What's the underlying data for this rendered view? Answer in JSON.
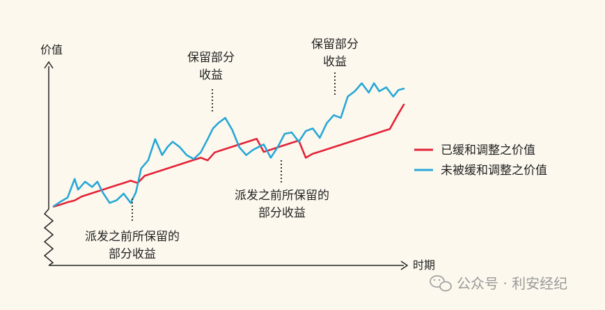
{
  "chart_data": {
    "type": "line",
    "axes": {
      "ylabel": "价值",
      "xlabel": "时期",
      "y_axis_break": true,
      "ticks": "none"
    },
    "legend": {
      "position": "right",
      "entries": [
        {
          "label": "已缓和调整之价值",
          "color": "#e32236"
        },
        {
          "label": "未被缓和调整之价值",
          "color": "#27a7d6"
        }
      ]
    },
    "annotations": [
      {
        "lines": [
          "派发之前所保留的",
          "部分收益"
        ]
      },
      {
        "lines": [
          "保留部分",
          "收益"
        ]
      },
      {
        "lines": [
          "派发之前所保留的",
          "部分收益"
        ]
      },
      {
        "lines": [
          "保留部分",
          "收益"
        ]
      }
    ],
    "series": [
      {
        "name": "已缓和调整之价值",
        "color": "#e32236",
        "x": [
          0,
          2,
          4,
          6,
          8,
          10,
          12,
          14,
          16,
          18,
          20,
          22,
          24,
          26,
          28,
          30,
          32,
          34,
          36,
          38,
          40,
          42,
          44,
          46,
          48,
          50,
          52,
          54,
          56,
          58,
          60,
          62,
          64,
          66,
          68,
          70,
          72,
          74,
          76,
          78,
          80,
          82,
          84,
          86,
          88,
          90,
          92,
          94,
          96,
          98,
          100
        ],
        "y": [
          11.2,
          12.8,
          14.5,
          15.9,
          18.8,
          20.5,
          22.2,
          23.9,
          25.6,
          27.3,
          29.0,
          30.7,
          29.0,
          34.4,
          36.1,
          37.8,
          39.5,
          41.2,
          42.9,
          44.6,
          46.3,
          48.0,
          46.0,
          52.0,
          53.7,
          55.4,
          57.1,
          58.8,
          60.5,
          62.2,
          52.4,
          54.0,
          55.8,
          57.5,
          59.2,
          60.9,
          48.0,
          51.0,
          52.6,
          54.3,
          56.0,
          57.7,
          59.4,
          61.1,
          62.8,
          64.5,
          66.2,
          67.9,
          69.6,
          79.0,
          88.0
        ]
      },
      {
        "name": "未被缓和调整之价值",
        "color": "#27a7d6",
        "x": [
          0,
          2,
          4,
          6,
          7,
          9,
          11,
          12.5,
          14,
          16,
          18,
          20,
          22,
          23.5,
          25,
          27,
          29,
          31,
          32.5,
          34,
          36,
          38,
          40,
          42,
          44,
          45.5,
          47,
          49,
          51,
          53,
          55,
          57,
          58.5,
          60,
          62,
          64,
          66,
          68,
          70,
          72,
          74,
          76,
          78,
          80,
          82,
          84,
          86,
          88,
          90,
          91.5,
          93,
          95,
          97,
          98.5,
          100
        ],
        "y": [
          11.5,
          15.0,
          18.0,
          32.0,
          24.0,
          30.0,
          26.0,
          30.0,
          22.0,
          14.0,
          16.0,
          21.0,
          14.0,
          22.0,
          40.0,
          46.0,
          62.0,
          50.0,
          56.0,
          60.0,
          56.0,
          50.0,
          47.0,
          52.0,
          62.0,
          70.0,
          74.0,
          78.0,
          69.0,
          56.0,
          50.0,
          54.0,
          56.0,
          58.0,
          48.0,
          56.0,
          66.0,
          67.0,
          60.0,
          68.0,
          70.0,
          63.0,
          74.0,
          80.0,
          78.0,
          94.0,
          98.0,
          104.0,
          97.0,
          104.0,
          98.0,
          101.0,
          94.0,
          99.0,
          100.0
        ]
      }
    ]
  },
  "watermark": {
    "text": "公众号 · 利安经纪"
  }
}
